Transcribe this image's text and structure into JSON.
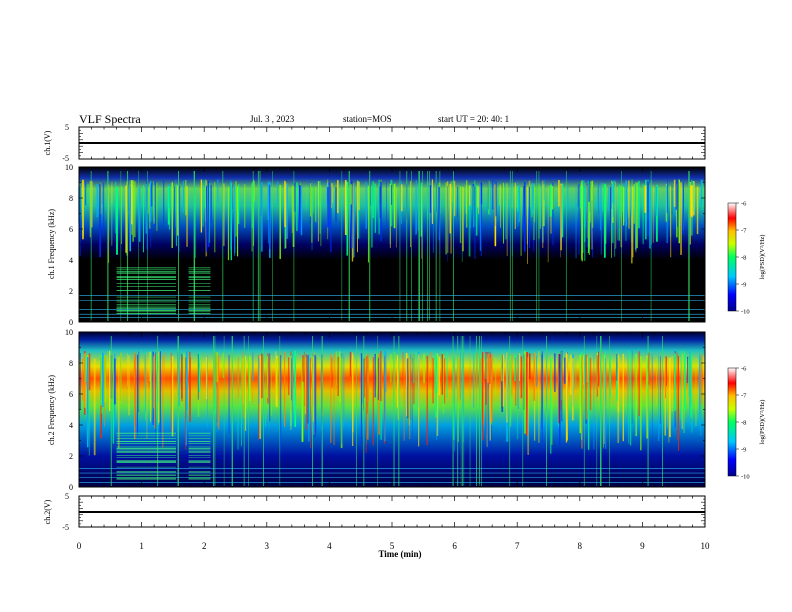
{
  "header": {
    "title": "VLF Spectra",
    "date": "Jul. 3 , 2023",
    "station": "station=MOS",
    "start": "start UT = 20: 40: 1"
  },
  "chart_data": [
    {
      "type": "line",
      "panel": "ch1-waveform",
      "ylabel": "ch.1(V)",
      "ylim": [
        -5,
        5
      ],
      "yticks": [
        "5",
        "-5"
      ],
      "series": [
        {
          "values": [
            0,
            0
          ]
        }
      ]
    },
    {
      "type": "heatmap",
      "panel": "ch1-spectrogram",
      "ylabel": "ch.1 Frequency (kHz)",
      "ylim": [
        0,
        10
      ],
      "yticks": [
        "0",
        "2",
        "4",
        "6",
        "8",
        "10"
      ],
      "colorbar": {
        "label": "log(PSD)(V²/Hz)",
        "range": [
          -10,
          -6
        ],
        "ticks": [
          "-6",
          "-7",
          "-8",
          "-9",
          "-10"
        ]
      }
    },
    {
      "type": "heatmap",
      "panel": "ch2-spectrogram",
      "ylabel": "ch.2 Frequency (kHz)",
      "ylim": [
        0,
        10
      ],
      "yticks": [
        "0",
        "2",
        "4",
        "6",
        "8",
        "10"
      ],
      "colorbar": {
        "label": "log(PSD)(V²/Hz)",
        "range": [
          -10,
          -6
        ],
        "ticks": [
          "-6",
          "-7",
          "-8",
          "-9",
          "-10"
        ]
      }
    },
    {
      "type": "line",
      "panel": "ch2-waveform",
      "ylabel": "ch.2(V)",
      "ylim": [
        -5,
        5
      ],
      "yticks": [
        "5",
        "-5"
      ],
      "series": [
        {
          "values": [
            0,
            0
          ]
        }
      ]
    }
  ],
  "xaxis": {
    "label": "Time (min)",
    "xlim": [
      0,
      10
    ],
    "ticks": [
      "0",
      "1",
      "2",
      "3",
      "4",
      "5",
      "6",
      "7",
      "8",
      "9",
      "10"
    ]
  },
  "colors": {
    "background": "#000000",
    "spec_low": "#0000ff",
    "spec_mid": "#00ff00",
    "spec_high": "#ff0000"
  }
}
